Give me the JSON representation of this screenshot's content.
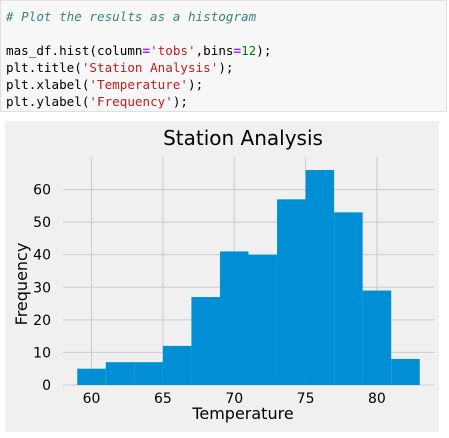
{
  "code_cell": {
    "comment": "# Plot the results as a histogram",
    "line1": {
      "a": "mas_df.hist(column",
      "eq1": "=",
      "s1": "'tobs'",
      "b": ",bins",
      "eq2": "=",
      "n": "12",
      "c": ");"
    },
    "line2": {
      "a": "plt.title(",
      "s": "'Station Analysis'",
      "c": ");"
    },
    "line3": {
      "a": "plt.xlabel(",
      "s": "'Temperature'",
      "c": ");"
    },
    "line4": {
      "a": "plt.ylabel(",
      "s": "'Frequency'",
      "c": ");"
    }
  },
  "colors": {
    "bar": "#008fd5",
    "plot_bg": "#f0f0f0",
    "grid": "#cbcbcb",
    "comment": "#408080",
    "string": "#ba2121",
    "operator": "#aa22ff",
    "number": "#008000"
  },
  "chart_data": {
    "type": "bar",
    "title": "Station Analysis",
    "xlabel": "Temperature",
    "ylabel": "Frequency",
    "xlim": [
      58,
      84
    ],
    "ylim": [
      0,
      70
    ],
    "x_ticks": [
      60,
      65,
      70,
      75,
      80
    ],
    "y_ticks": [
      0,
      10,
      20,
      30,
      40,
      50,
      60
    ],
    "grid": true,
    "bins": [
      {
        "start": 59,
        "end": 61,
        "value": 5
      },
      {
        "start": 61,
        "end": 63,
        "value": 7
      },
      {
        "start": 63,
        "end": 65,
        "value": 7
      },
      {
        "start": 65,
        "end": 67,
        "value": 12
      },
      {
        "start": 67,
        "end": 69,
        "value": 27
      },
      {
        "start": 69,
        "end": 71,
        "value": 41
      },
      {
        "start": 71,
        "end": 73,
        "value": 40
      },
      {
        "start": 73,
        "end": 75,
        "value": 57
      },
      {
        "start": 75,
        "end": 77,
        "value": 66
      },
      {
        "start": 77,
        "end": 79,
        "value": 53
      },
      {
        "start": 79,
        "end": 81,
        "value": 29
      },
      {
        "start": 81,
        "end": 83,
        "value": 8
      }
    ]
  }
}
